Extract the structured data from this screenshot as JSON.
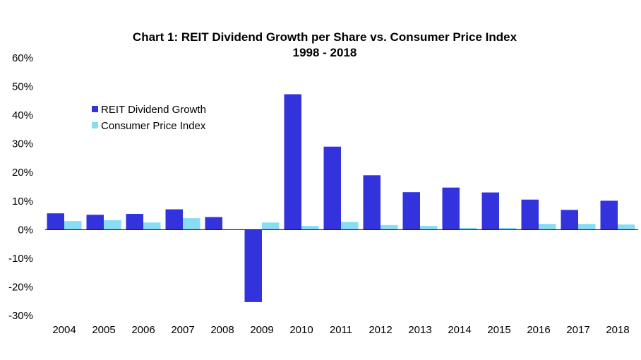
{
  "chart_data": {
    "type": "bar",
    "title": "Chart 1: REIT Dividend Growth per Share vs. Consumer Price Index",
    "subtitle": "1998 - 2018",
    "xlabel": "",
    "ylabel": "",
    "categories": [
      "2004",
      "2005",
      "2006",
      "2007",
      "2008",
      "2009",
      "2010",
      "2011",
      "2012",
      "2013",
      "2014",
      "2015",
      "2016",
      "2017",
      "2018"
    ],
    "series": [
      {
        "name": "REIT Dividend Growth",
        "color": "#3333dd",
        "values": [
          5.7,
          5.2,
          5.5,
          7.1,
          4.4,
          -25.3,
          47.3,
          29.0,
          19.0,
          13.1,
          14.7,
          13.0,
          10.5,
          6.9,
          10.1
        ]
      },
      {
        "name": "Consumer Price Index",
        "color": "#88ddf5",
        "values": [
          3.0,
          3.3,
          2.5,
          4.0,
          0.1,
          2.5,
          1.3,
          2.7,
          1.6,
          1.3,
          0.6,
          0.6,
          2.0,
          2.0,
          1.8
        ]
      }
    ],
    "ylim": [
      -30,
      60
    ],
    "yticks": [
      -30,
      -20,
      -10,
      0,
      10,
      20,
      30,
      40,
      50,
      60
    ],
    "ytick_labels": [
      "-30%",
      "-20%",
      "-10%",
      "0%",
      "10%",
      "20%",
      "30%",
      "40%",
      "50%",
      "60%"
    ],
    "grid": false,
    "legend_position": "top-left"
  }
}
